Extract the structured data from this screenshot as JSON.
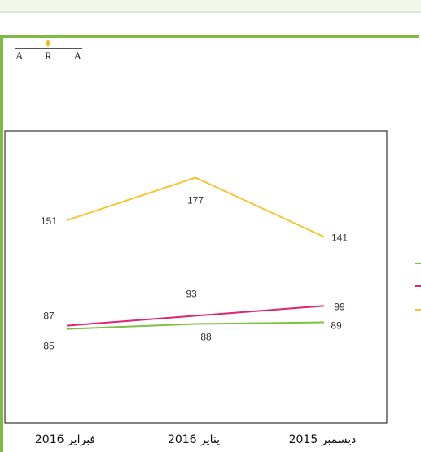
{
  "logo": {
    "letters": [
      "A",
      "R",
      "A"
    ]
  },
  "chart_data": {
    "type": "line",
    "categories": [
      "فبراير 2016",
      "يناير 2016",
      "ديسمبر 2015"
    ],
    "series": [
      {
        "values": [
          151,
          177,
          141
        ],
        "color": "#f7c531",
        "labels": [
          "151",
          "177",
          "141"
        ]
      },
      {
        "values": [
          87,
          93,
          99
        ],
        "color": "#e2246e",
        "labels": [
          "87",
          "93",
          "99"
        ]
      },
      {
        "values": [
          85,
          88,
          89
        ],
        "color": "#7dc142",
        "labels": [
          "85",
          "88",
          "89"
        ]
      }
    ],
    "legend_position": "right",
    "grid": false
  }
}
